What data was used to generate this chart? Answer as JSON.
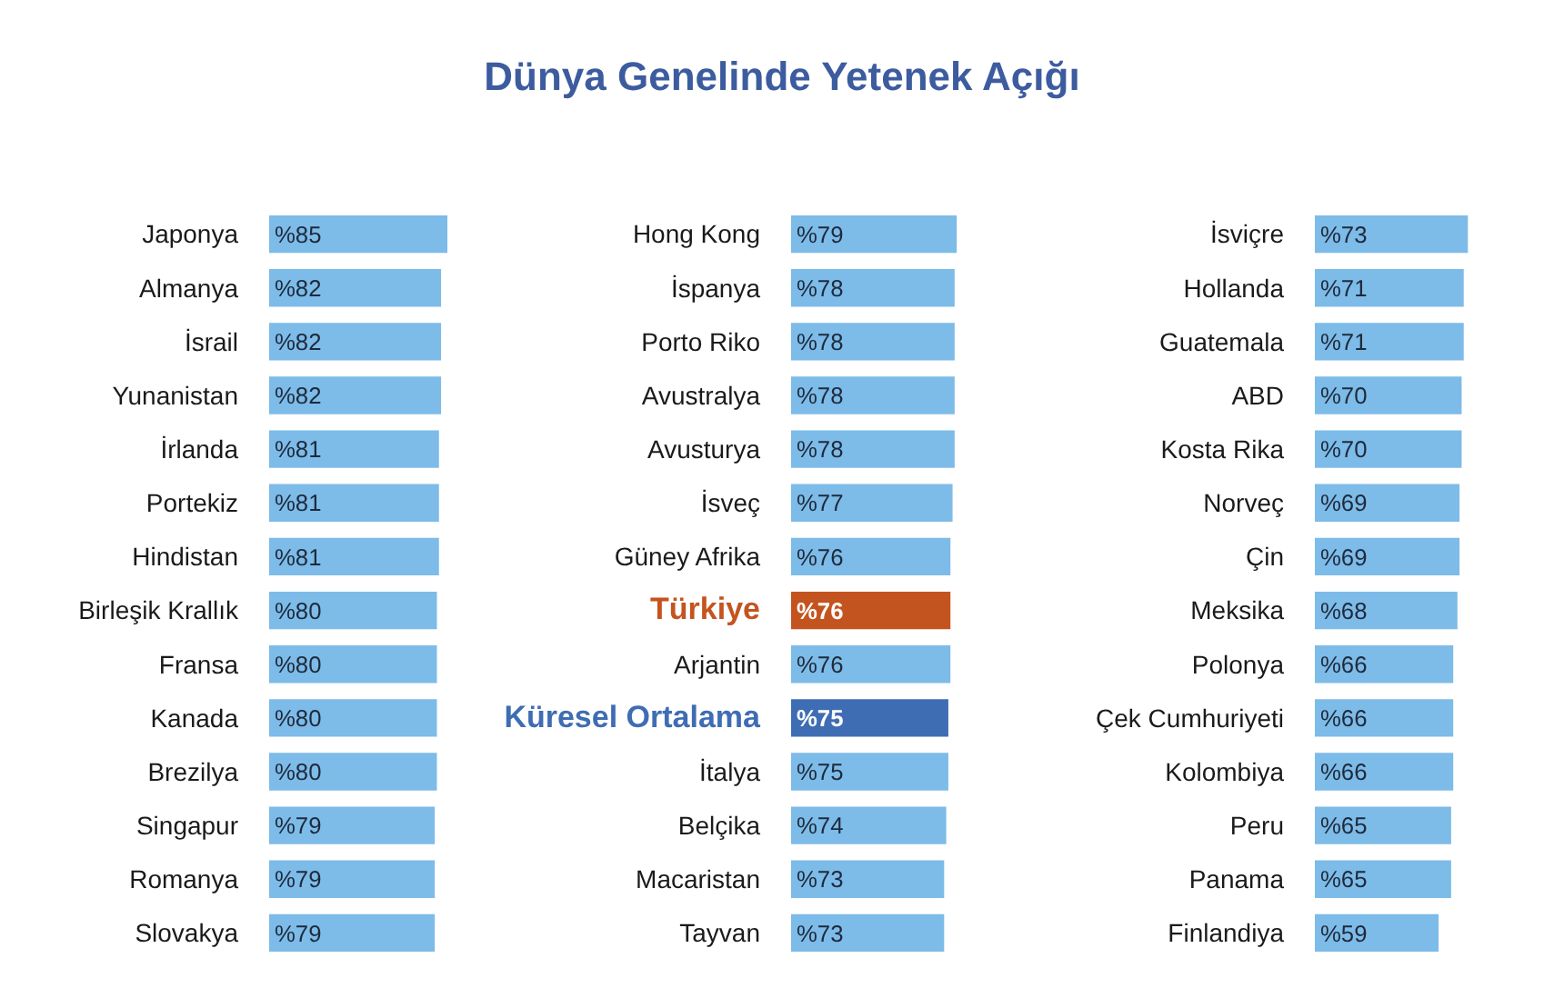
{
  "chart_data": [
    {
      "type": "bar",
      "orientation": "horizontal",
      "categories": [
        "Japonya",
        "Almanya",
        "İsrail",
        "Yunanistan",
        "İrlanda",
        "Portekiz",
        "Hindistan",
        "Birleşik Krallık",
        "Fransa",
        "Kanada",
        "Brezilya",
        "Singapur",
        "Romanya",
        "Slovakya"
      ],
      "values": [
        85,
        82,
        82,
        82,
        81,
        81,
        81,
        80,
        80,
        80,
        80,
        79,
        79,
        79
      ],
      "value_labels": [
        "%85",
        "%82",
        "%82",
        "%82",
        "%81",
        "%81",
        "%81",
        "%80",
        "%80",
        "%80",
        "%80",
        "%79",
        "%79",
        "%79"
      ],
      "colors": [
        "#7dbbe9",
        "#7dbbe9",
        "#7dbbe9",
        "#7dbbe9",
        "#7dbbe9",
        "#7dbbe9",
        "#7dbbe9",
        "#7dbbe9",
        "#7dbbe9",
        "#7dbbe9",
        "#7dbbe9",
        "#7dbbe9",
        "#7dbbe9",
        "#7dbbe9"
      ]
    },
    {
      "type": "bar",
      "orientation": "horizontal",
      "title": "Dünya Genelinde Yetenek Açığı",
      "categories": [
        "Hong Kong",
        "İspanya",
        "Porto Riko",
        "Avustralya",
        "Avusturya",
        "İsveç",
        "Güney Afrika",
        "Türkiye",
        "Arjantin",
        "Küresel Ortalama",
        "İtalya",
        "Belçika",
        "Macaristan",
        "Tayvan"
      ],
      "values": [
        79,
        78,
        78,
        78,
        78,
        77,
        76,
        76,
        76,
        75,
        75,
        74,
        73,
        73
      ],
      "value_labels": [
        "%79",
        "%78",
        "%78",
        "%78",
        "%78",
        "%77",
        "%76",
        "%76",
        "%76",
        "%75",
        "%75",
        "%74",
        "%73",
        "%73"
      ],
      "colors": [
        "#7dbbe9",
        "#7dbbe9",
        "#7dbbe9",
        "#7dbbe9",
        "#7dbbe9",
        "#7dbbe9",
        "#7dbbe9",
        "#c4541f",
        "#7dbbe9",
        "#3f6db3",
        "#7dbbe9",
        "#7dbbe9",
        "#7dbbe9",
        "#7dbbe9"
      ]
    },
    {
      "type": "bar",
      "orientation": "horizontal",
      "categories": [
        "İsviçre",
        "Hollanda",
        "Guatemala",
        "ABD",
        "Kosta Rika",
        "Norveç",
        "Çin",
        "Meksika",
        "Polonya",
        "Çek Cumhuriyeti",
        "Kolombiya",
        "Peru",
        "Panama",
        "Finlandiya"
      ],
      "values": [
        73,
        71,
        71,
        70,
        70,
        69,
        69,
        68,
        66,
        66,
        66,
        65,
        65,
        59
      ],
      "value_labels": [
        "%73",
        "%71",
        "%71",
        "%70",
        "%70",
        "%69",
        "%69",
        "%68",
        "%66",
        "%66",
        "%66",
        "%65",
        "%65",
        "%59"
      ],
      "colors": [
        "#7dbbe9",
        "#7dbbe9",
        "#7dbbe9",
        "#7dbbe9",
        "#7dbbe9",
        "#7dbbe9",
        "#7dbbe9",
        "#7dbbe9",
        "#7dbbe9",
        "#7dbbe9",
        "#7dbbe9",
        "#7dbbe9",
        "#7dbbe9",
        "#7dbbe9"
      ]
    }
  ]
}
